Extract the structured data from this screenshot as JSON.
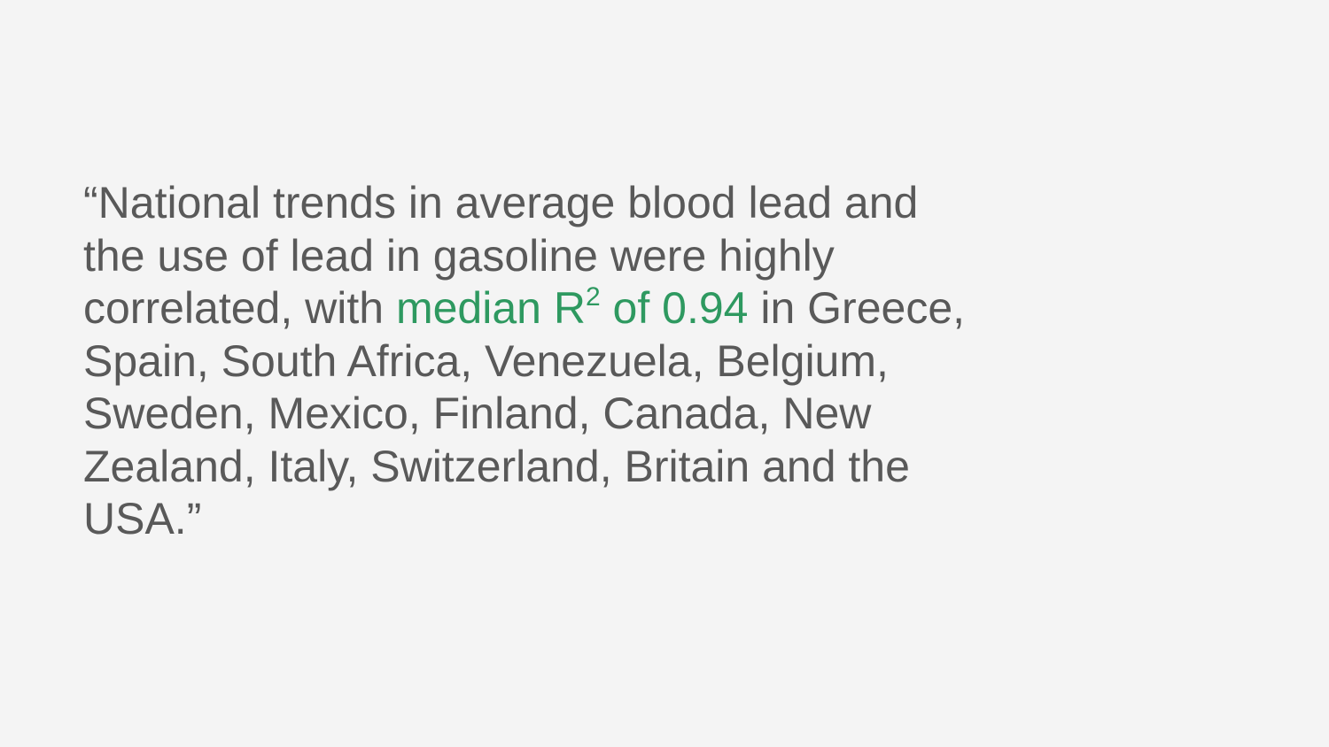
{
  "quote": {
    "lines": [
      "“National trends in average blood lead and",
      "the use of lead in gasoline were highly",
      "in Greece,",
      "Spain, South Africa, Venezuela, Belgium,",
      "Sweden, Mexico, Finland, Canada, New",
      "Zealand, Italy, Switzerland, Britain and the",
      "USA.”"
    ],
    "line3_prefix": "correlated, with",
    "highlight_main": "median R",
    "highlight_superscript": "2",
    "highlight_suffix": "of 0.94",
    "colors": {
      "text": "#595959",
      "highlight": "#2e9960",
      "background": "#f4f4f4"
    }
  }
}
